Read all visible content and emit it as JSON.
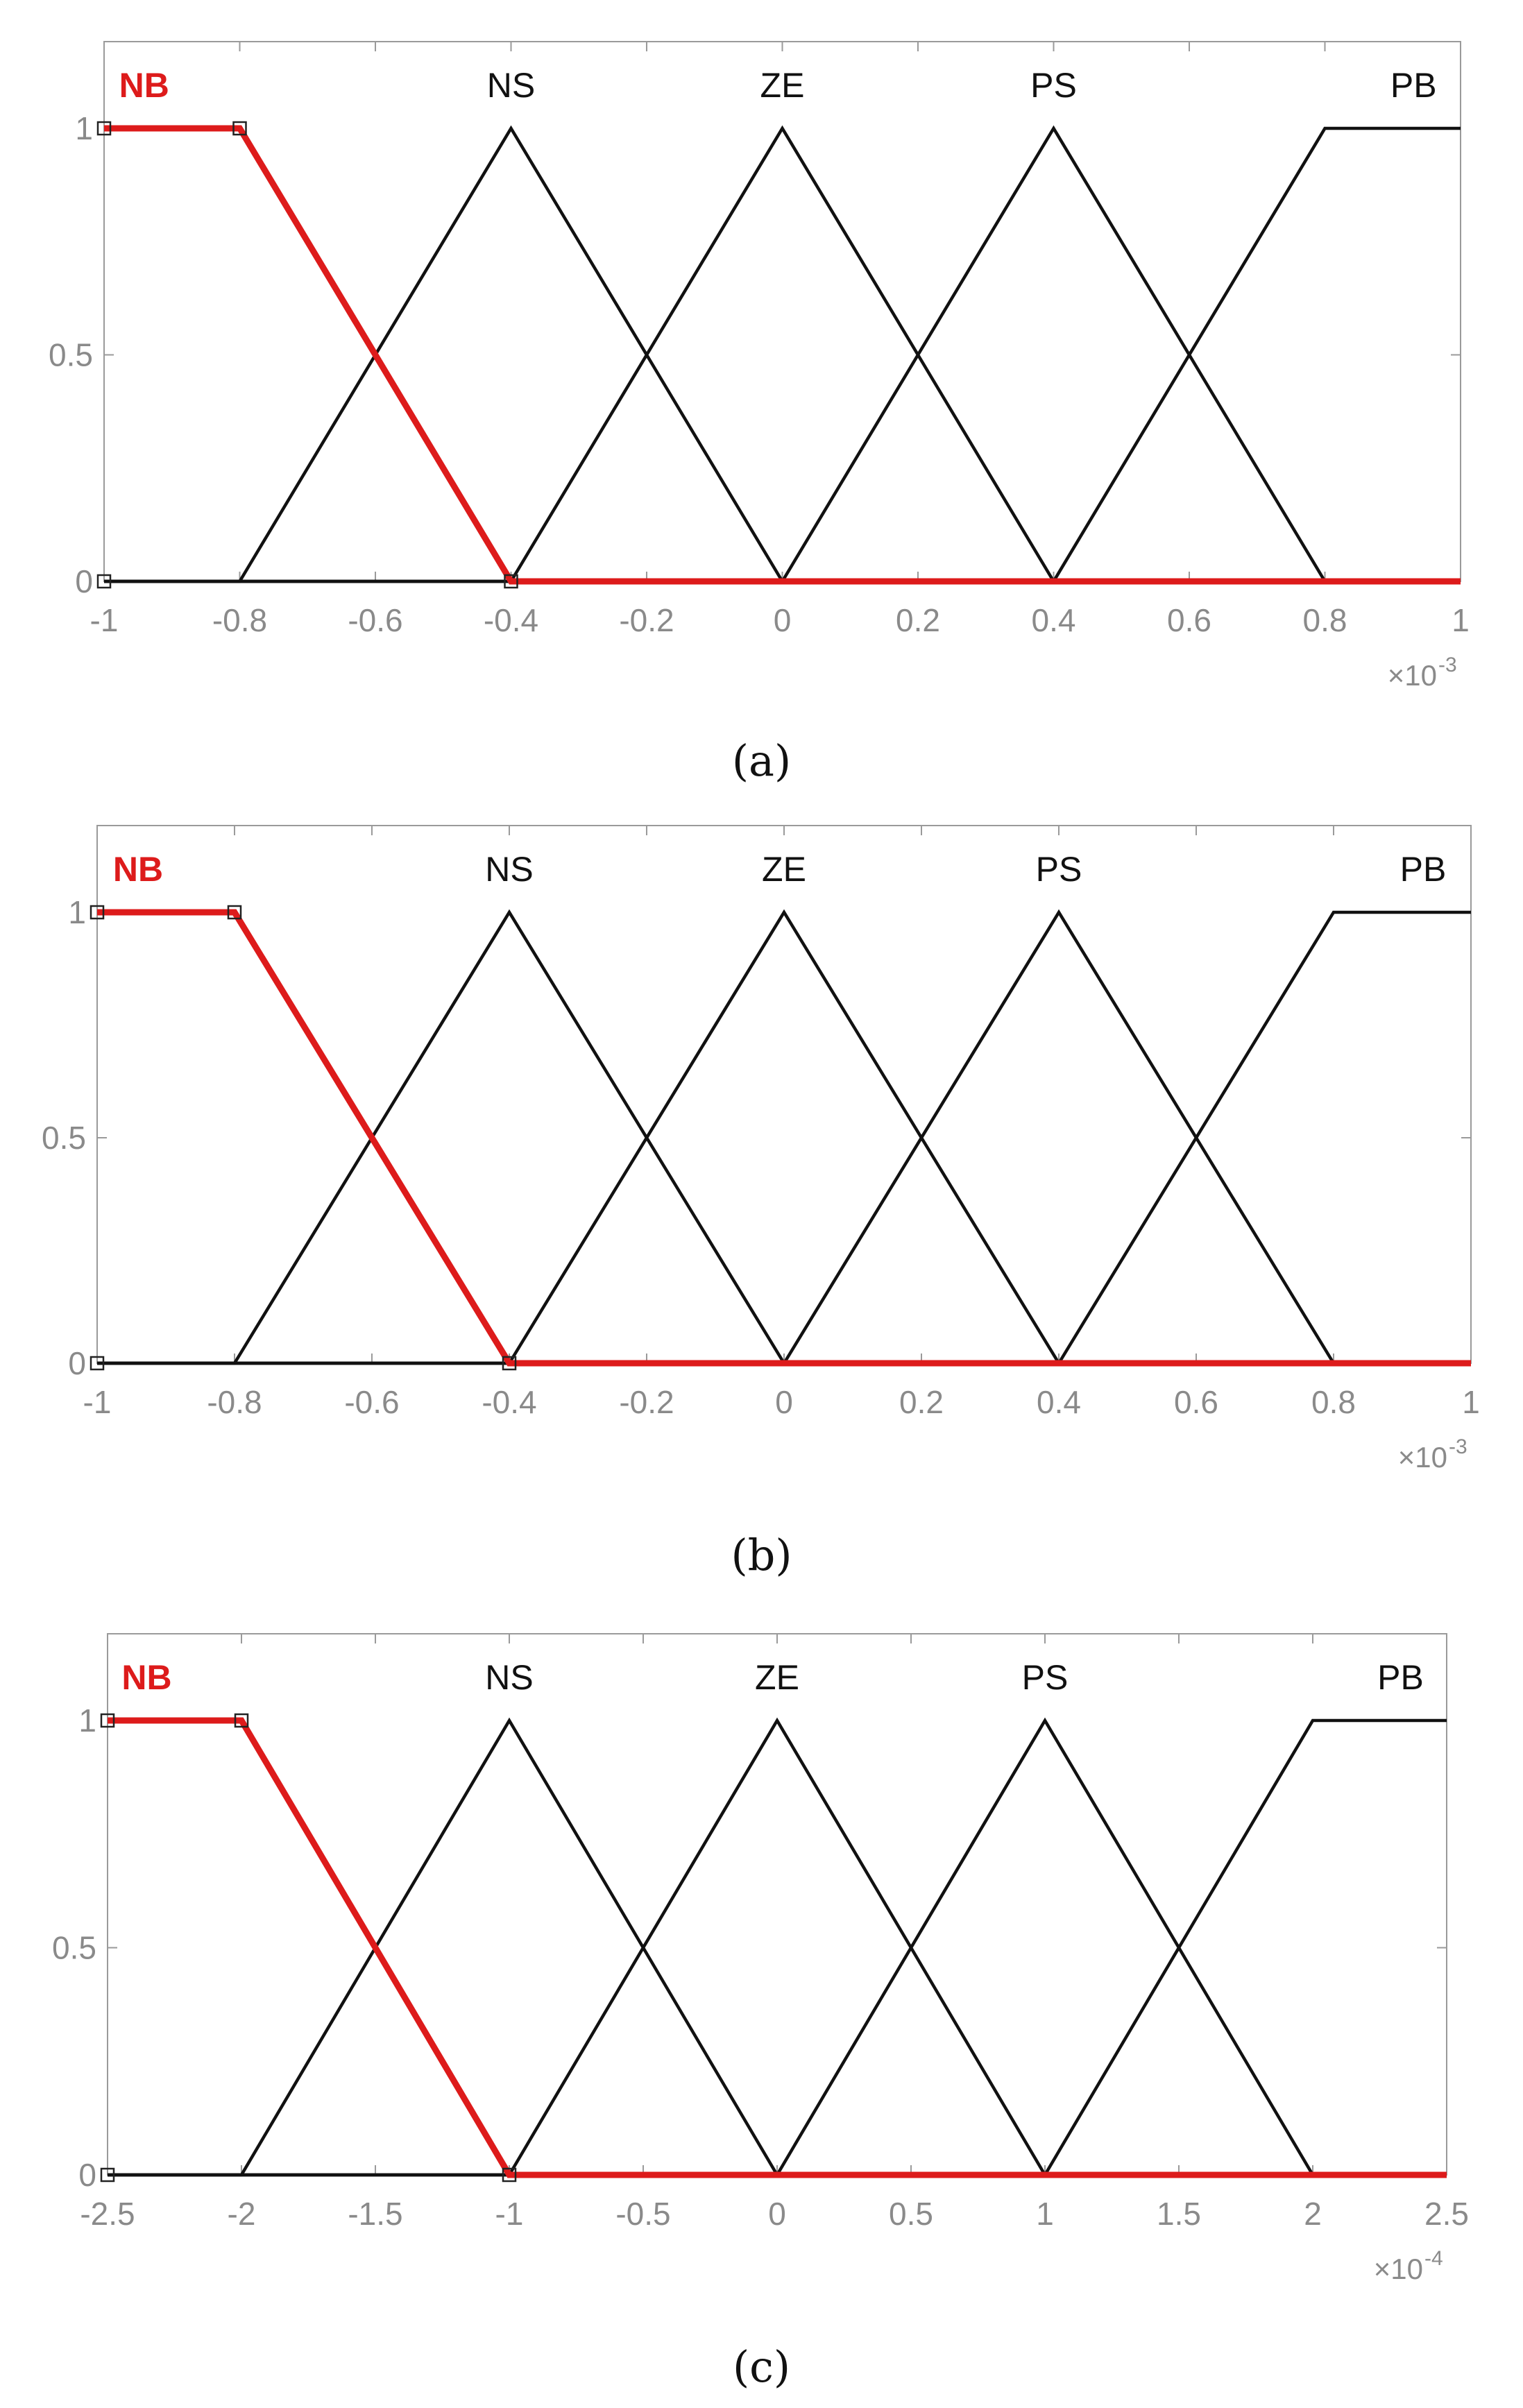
{
  "chart_data": [
    {
      "type": "line",
      "panel": "a",
      "caption": "(a)",
      "xlim": [
        -1,
        1
      ],
      "ylim": [
        0,
        1
      ],
      "x_ticks": [
        "-1",
        "-0.8",
        "-0.6",
        "-0.4",
        "-0.2",
        "0",
        "0.2",
        "0.4",
        "0.6",
        "0.8",
        "1"
      ],
      "y_ticks": [
        "0",
        "0.5",
        "1"
      ],
      "x_multiplier": "×10",
      "x_exponent": "-3",
      "selected": "NB",
      "series": [
        {
          "name": "NB",
          "x": [
            -1,
            -0.8,
            -0.4,
            1
          ],
          "y": [
            1,
            1,
            0,
            0
          ]
        },
        {
          "name": "NS",
          "x": [
            -1,
            -0.8,
            -0.4,
            0,
            1
          ],
          "y": [
            0,
            0,
            1,
            0,
            0
          ]
        },
        {
          "name": "ZE",
          "x": [
            -1,
            -0.4,
            0,
            0.4,
            1
          ],
          "y": [
            0,
            0,
            1,
            0,
            0
          ]
        },
        {
          "name": "PS",
          "x": [
            -1,
            0,
            0.4,
            0.8,
            1
          ],
          "y": [
            0,
            0,
            1,
            0,
            0
          ]
        },
        {
          "name": "PB",
          "x": [
            -1,
            0.4,
            0.8,
            1
          ],
          "y": [
            0,
            0,
            1,
            1
          ]
        }
      ]
    },
    {
      "type": "line",
      "panel": "b",
      "caption": "(b)",
      "xlim": [
        -1,
        1
      ],
      "ylim": [
        0,
        1
      ],
      "x_ticks": [
        "-1",
        "-0.8",
        "-0.6",
        "-0.4",
        "-0.2",
        "0",
        "0.2",
        "0.4",
        "0.6",
        "0.8",
        "1"
      ],
      "y_ticks": [
        "0",
        "0.5",
        "1"
      ],
      "x_multiplier": "×10",
      "x_exponent": "-3",
      "selected": "NB",
      "series": [
        {
          "name": "NB",
          "x": [
            -1,
            -0.8,
            -0.4,
            1
          ],
          "y": [
            1,
            1,
            0,
            0
          ]
        },
        {
          "name": "NS",
          "x": [
            -1,
            -0.8,
            -0.4,
            0,
            1
          ],
          "y": [
            0,
            0,
            1,
            0,
            0
          ]
        },
        {
          "name": "ZE",
          "x": [
            -1,
            -0.4,
            0,
            0.4,
            1
          ],
          "y": [
            0,
            0,
            1,
            0,
            0
          ]
        },
        {
          "name": "PS",
          "x": [
            -1,
            0,
            0.4,
            0.8,
            1
          ],
          "y": [
            0,
            0,
            1,
            0,
            0
          ]
        },
        {
          "name": "PB",
          "x": [
            -1,
            0.4,
            0.8,
            1
          ],
          "y": [
            0,
            0,
            1,
            1
          ]
        }
      ]
    },
    {
      "type": "line",
      "panel": "c",
      "caption": "(c)",
      "xlim": [
        -2.5,
        2.5
      ],
      "ylim": [
        0,
        1
      ],
      "x_ticks": [
        "-2.5",
        "-2",
        "-1.5",
        "-1",
        "-0.5",
        "0",
        "0.5",
        "1",
        "1.5",
        "2",
        "2.5"
      ],
      "y_ticks": [
        "0",
        "0.5",
        "1"
      ],
      "x_multiplier": "×10",
      "x_exponent": "-4",
      "selected": "NB",
      "series": [
        {
          "name": "NB",
          "x": [
            -2.5,
            -2,
            -1,
            2.5
          ],
          "y": [
            1,
            1,
            0,
            0
          ]
        },
        {
          "name": "NS",
          "x": [
            -2.5,
            -2,
            -1,
            0,
            2.5
          ],
          "y": [
            0,
            0,
            1,
            0,
            0
          ]
        },
        {
          "name": "ZE",
          "x": [
            -2.5,
            -1,
            0,
            1,
            2.5
          ],
          "y": [
            0,
            0,
            1,
            0,
            0
          ]
        },
        {
          "name": "PS",
          "x": [
            -2.5,
            0,
            1,
            2,
            2.5
          ],
          "y": [
            0,
            0,
            1,
            0,
            0
          ]
        },
        {
          "name": "PB",
          "x": [
            -2.5,
            1,
            2,
            2.5
          ],
          "y": [
            0,
            0,
            1,
            1
          ]
        }
      ]
    }
  ],
  "colors": {
    "selected": "#dd1b1b",
    "line": "#111111",
    "axis": "#9a9a9a",
    "tick_text": "#8a8a8a"
  }
}
